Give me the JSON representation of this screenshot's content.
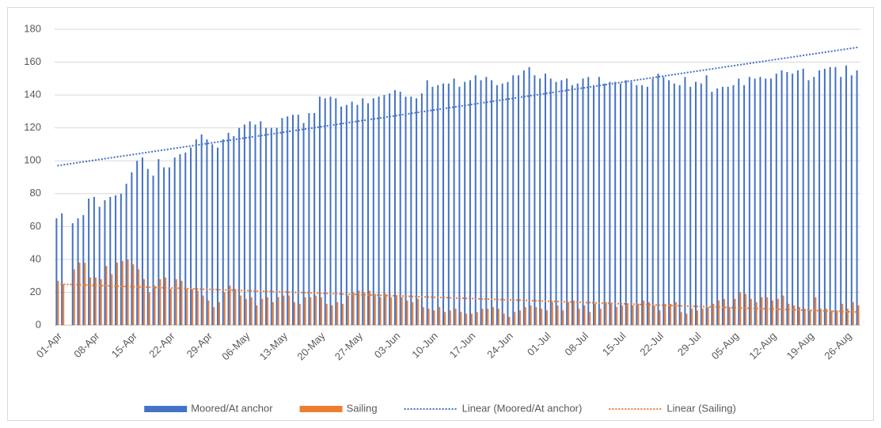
{
  "chart_data": {
    "type": "bar",
    "categories": [
      "01-Apr",
      null,
      null,
      null,
      null,
      null,
      null,
      "08-Apr",
      null,
      null,
      null,
      null,
      null,
      null,
      "15-Apr",
      null,
      null,
      null,
      null,
      null,
      null,
      "22-Apr",
      null,
      null,
      null,
      null,
      null,
      null,
      "29-Apr",
      null,
      null,
      null,
      null,
      null,
      null,
      "06-May",
      null,
      null,
      null,
      null,
      null,
      null,
      "13-May",
      null,
      null,
      null,
      null,
      null,
      null,
      "20-May",
      null,
      null,
      null,
      null,
      null,
      null,
      "27-May",
      null,
      null,
      null,
      null,
      null,
      null,
      "03-Jun",
      null,
      null,
      null,
      null,
      null,
      null,
      "10-Jun",
      null,
      null,
      null,
      null,
      null,
      null,
      "17-Jun",
      null,
      null,
      null,
      null,
      null,
      null,
      "24-Jun",
      null,
      null,
      null,
      null,
      null,
      null,
      "01-Jul",
      null,
      null,
      null,
      null,
      null,
      null,
      "08-Jul",
      null,
      null,
      null,
      null,
      null,
      null,
      "15-Jul",
      null,
      null,
      null,
      null,
      null,
      null,
      "22-Jul",
      null,
      null,
      null,
      null,
      null,
      null,
      "29-Jul",
      null,
      null,
      null,
      null,
      null,
      null,
      "05-Aug",
      null,
      null,
      null,
      null,
      null,
      null,
      "12-Aug",
      null,
      null,
      null,
      null,
      null,
      null,
      "19-Aug",
      null,
      null,
      null,
      null,
      null,
      null,
      "26-Aug",
      null,
      null
    ],
    "series": [
      {
        "name": "Moored/At anchor",
        "color": "#4472c4",
        "values": [
          65,
          68,
          null,
          62,
          65,
          67,
          77,
          78,
          72,
          76,
          78,
          79,
          80,
          86,
          93,
          100,
          102,
          95,
          91,
          101,
          96,
          96,
          102,
          104,
          105,
          108,
          113,
          116,
          113,
          110,
          108,
          113,
          117,
          115,
          120,
          122,
          124,
          122,
          124,
          120,
          120,
          120,
          126,
          127,
          128,
          128,
          123,
          129,
          129,
          139,
          138,
          139,
          138,
          133,
          134,
          136,
          134,
          138,
          135,
          138,
          139,
          140,
          141,
          143,
          142,
          139,
          139,
          138,
          141,
          149,
          145,
          146,
          147,
          147,
          150,
          145,
          148,
          149,
          152,
          149,
          151,
          149,
          146,
          147,
          148,
          152,
          152,
          155,
          157,
          152,
          150,
          153,
          150,
          148,
          149,
          150,
          146,
          147,
          150,
          151,
          146,
          151,
          147,
          148,
          148,
          147,
          149,
          148,
          146,
          146,
          145,
          150,
          153,
          151,
          149,
          147,
          146,
          151,
          145,
          148,
          147,
          152,
          142,
          144,
          145,
          145,
          146,
          150,
          146,
          151,
          150,
          151,
          150,
          150,
          153,
          155,
          154,
          153,
          155,
          156,
          149,
          151,
          155,
          156,
          157,
          157,
          151,
          158,
          152,
          155
        ]
      },
      {
        "name": "Sailing",
        "color": "#ed7d31",
        "values": [
          27,
          25,
          null,
          34,
          38,
          38,
          29,
          29,
          28,
          36,
          31,
          38,
          39,
          40,
          37,
          34,
          28,
          20,
          24,
          28,
          29,
          22,
          28,
          27,
          22,
          22,
          21,
          18,
          15,
          11,
          14,
          20,
          24,
          22,
          18,
          16,
          17,
          12,
          16,
          17,
          14,
          17,
          18,
          18,
          14,
          13,
          17,
          17,
          18,
          17,
          13,
          12,
          14,
          13,
          18,
          20,
          21,
          20,
          21,
          19,
          17,
          19,
          17,
          18,
          17,
          15,
          14,
          16,
          11,
          10,
          9,
          11,
          8,
          9,
          10,
          8,
          7,
          7,
          8,
          10,
          10,
          11,
          10,
          7,
          5,
          8,
          9,
          11,
          12,
          11,
          10,
          9,
          14,
          12,
          9,
          14,
          15,
          10,
          12,
          8,
          13,
          10,
          14,
          13,
          11,
          12,
          13,
          12,
          13,
          15,
          14,
          12,
          9,
          13,
          13,
          14,
          8,
          7,
          10,
          9,
          10,
          11,
          13,
          15,
          16,
          11,
          16,
          20,
          19,
          16,
          14,
          17,
          17,
          15,
          16,
          18,
          13,
          12,
          11,
          10,
          9,
          17,
          10,
          10,
          9,
          9,
          13,
          10,
          14,
          12
        ]
      }
    ],
    "trendlines": [
      {
        "name": "Linear (Moored/At anchor)",
        "color": "#4472c4",
        "values": [
          97,
          169
        ]
      },
      {
        "name": "Linear (Sailing)",
        "color": "#ed7d31",
        "values": [
          25,
          8
        ]
      }
    ],
    "ylim": [
      0,
      180
    ],
    "yticks": [
      0,
      20,
      40,
      60,
      80,
      100,
      120,
      140,
      160,
      180
    ],
    "grid": true,
    "legend": "bottom"
  }
}
